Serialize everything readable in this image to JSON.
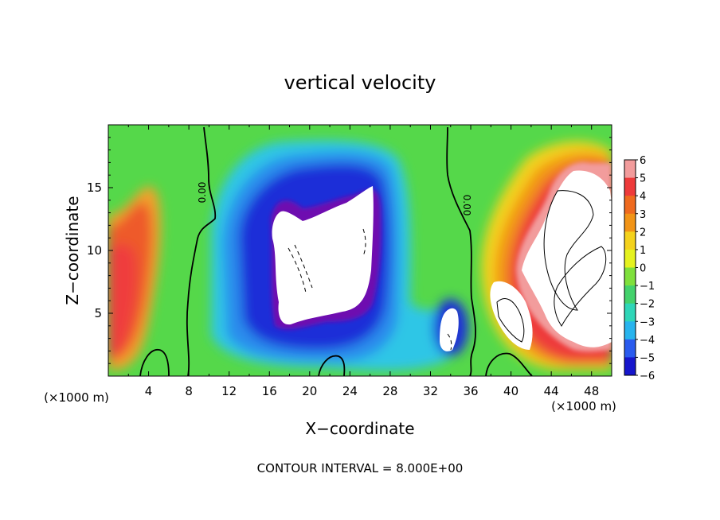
{
  "chart_data": {
    "type": "heatmap",
    "title": "vertical velocity",
    "xlabel": "X−coordinate",
    "ylabel": "Z−coordinate",
    "x_unit_label": "(×1000 m)",
    "y_unit_label": "(×1000 m)",
    "footer": "CONTOUR INTERVAL = 8.000E+00",
    "xlim": [
      0,
      50
    ],
    "ylim": [
      0,
      20
    ],
    "x_ticks": [
      4,
      8,
      12,
      16,
      20,
      24,
      28,
      32,
      36,
      40,
      44,
      48
    ],
    "y_ticks": [
      5,
      10,
      15
    ],
    "contour_label": "0.00",
    "colorbar": {
      "range": [
        -6,
        6
      ],
      "labels": [
        "6",
        "5",
        "4",
        "3",
        "2",
        "1",
        "0",
        "−1",
        "−2",
        "−3",
        "−4",
        "−5",
        "−6"
      ],
      "colors": [
        "#f29c9c",
        "#ee3a3a",
        "#ef6a1e",
        "#f29416",
        "#f4d21c",
        "#e5f21f",
        "#7fe03c",
        "#44d26c",
        "#2fd6b8",
        "#28b4ee",
        "#2a5bee",
        "#1616cc",
        "#6e10b0"
      ]
    },
    "grid": false,
    "legend": "colorbar-right",
    "features": [
      {
        "name": "left updraft",
        "x": 2.5,
        "z": 8,
        "w": 4
      },
      {
        "name": "central downdraft core",
        "x": 23,
        "z": 10,
        "w": -8
      },
      {
        "name": "small downdraft",
        "x": 34,
        "z": 3.5,
        "w": -8
      },
      {
        "name": "right updraft core",
        "x": 46,
        "z": 9,
        "w": 8
      }
    ]
  }
}
